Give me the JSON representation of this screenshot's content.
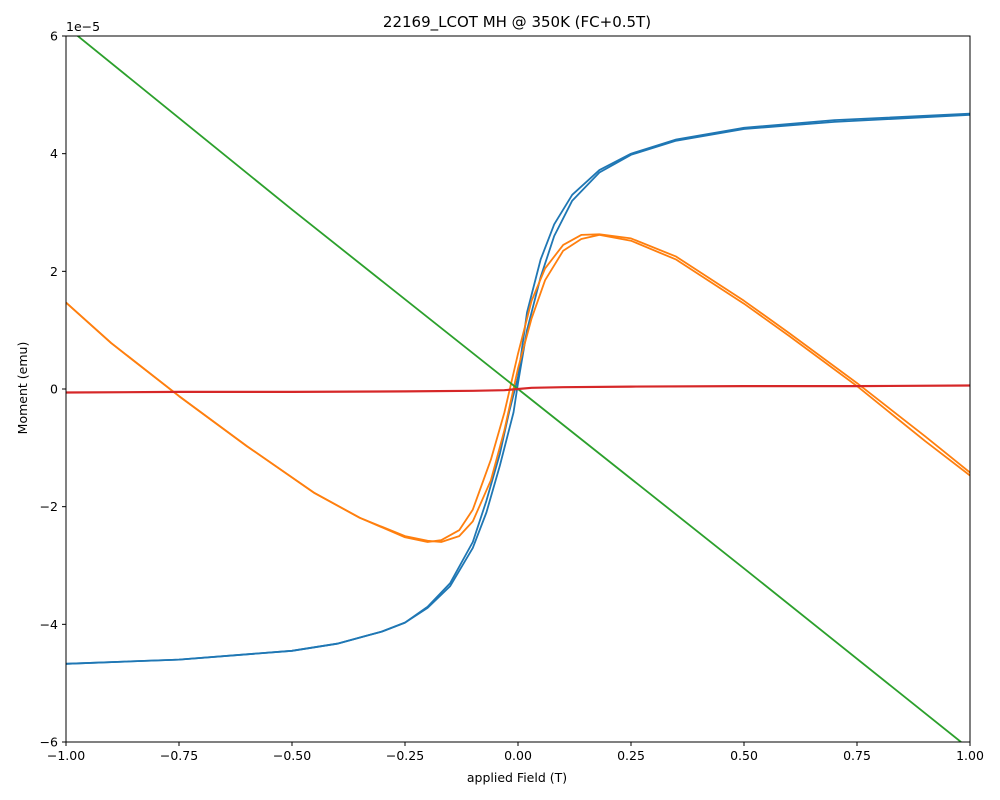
{
  "chart_data": {
    "type": "line",
    "title": "22169_LCOT MH @ 350K (FC+0.5T)",
    "xlabel": "applied Field (T)",
    "ylabel": "Moment (emu)",
    "y_offset_label": "1e−5",
    "xlim": [
      -1.0,
      1.0
    ],
    "ylim": [
      -6,
      6
    ],
    "x_ticks": [
      "−1.00",
      "−0.75",
      "−0.50",
      "−0.25",
      "0.00",
      "0.25",
      "0.50",
      "0.75",
      "1.00"
    ],
    "x_tick_values": [
      -1.0,
      -0.75,
      -0.5,
      -0.25,
      0.0,
      0.25,
      0.5,
      0.75,
      1.0
    ],
    "y_ticks": [
      "−6",
      "−4",
      "−2",
      "0",
      "2",
      "4",
      "6"
    ],
    "y_tick_values": [
      -6,
      -4,
      -2,
      0,
      2,
      4,
      6
    ],
    "grid": false,
    "legend": "none",
    "y_unit_scale": "1e-5",
    "series": [
      {
        "color": "#1f77b4",
        "branches": [
          {
            "x": [
              -1.0,
              -0.75,
              -0.5,
              -0.4,
              -0.3,
              -0.25,
              -0.2,
              -0.15,
              -0.1,
              -0.07,
              -0.04,
              -0.01,
              0.0,
              0.02,
              0.05,
              0.08,
              0.12,
              0.18,
              0.25,
              0.35,
              0.5,
              0.7,
              1.0
            ],
            "y": [
              -4.67,
              -4.6,
              -4.45,
              -4.33,
              -4.12,
              -3.97,
              -3.72,
              -3.35,
              -2.7,
              -2.1,
              -1.3,
              -0.4,
              0.1,
              1.0,
              1.9,
              2.6,
              3.2,
              3.68,
              3.98,
              4.22,
              4.42,
              4.54,
              4.66
            ]
          },
          {
            "x": [
              -1.0,
              -0.75,
              -0.5,
              -0.4,
              -0.3,
              -0.25,
              -0.2,
              -0.15,
              -0.1,
              -0.07,
              -0.04,
              -0.02,
              0.0,
              0.02,
              0.05,
              0.08,
              0.12,
              0.18,
              0.25,
              0.35,
              0.5,
              0.7,
              1.0
            ],
            "y": [
              -4.67,
              -4.6,
              -4.45,
              -4.33,
              -4.12,
              -3.97,
              -3.7,
              -3.3,
              -2.6,
              -1.9,
              -1.1,
              -0.4,
              0.2,
              1.3,
              2.2,
              2.8,
              3.3,
              3.72,
              4.0,
              4.24,
              4.44,
              4.57,
              4.68
            ]
          }
        ]
      },
      {
        "color": "#ff7f0e",
        "branches": [
          {
            "x": [
              -1.0,
              -0.9,
              -0.75,
              -0.6,
              -0.45,
              -0.35,
              -0.25,
              -0.2,
              -0.17,
              -0.13,
              -0.1,
              -0.06,
              -0.03,
              0.0,
              0.03,
              0.06,
              0.1,
              0.14,
              0.18,
              0.25,
              0.35,
              0.5,
              0.6,
              0.75,
              0.9,
              1.0
            ],
            "y": [
              1.47,
              0.78,
              -0.12,
              -0.97,
              -1.77,
              -2.19,
              -2.5,
              -2.58,
              -2.6,
              -2.5,
              -2.25,
              -1.55,
              -0.7,
              0.35,
              1.2,
              1.85,
              2.35,
              2.55,
              2.62,
              2.52,
              2.2,
              1.45,
              0.9,
              0.05,
              -0.88,
              -1.47
            ]
          },
          {
            "x": [
              -1.0,
              -0.9,
              -0.75,
              -0.6,
              -0.45,
              -0.35,
              -0.25,
              -0.2,
              -0.17,
              -0.13,
              -0.1,
              -0.06,
              -0.03,
              0.0,
              0.03,
              0.06,
              0.1,
              0.14,
              0.18,
              0.25,
              0.35,
              0.5,
              0.6,
              0.75,
              0.9,
              1.0
            ],
            "y": [
              1.47,
              0.78,
              -0.12,
              -0.97,
              -1.77,
              -2.19,
              -2.52,
              -2.6,
              -2.57,
              -2.4,
              -2.05,
              -1.2,
              -0.4,
              0.6,
              1.5,
              2.05,
              2.45,
              2.62,
              2.63,
              2.56,
              2.25,
              1.5,
              0.95,
              0.1,
              -0.8,
              -1.42
            ]
          }
        ]
      },
      {
        "color": "#2ca02c",
        "branches": [
          {
            "x": [
              -0.99,
              -0.5,
              0.0,
              0.5,
              0.98
            ],
            "y": [
              6.1,
              3.05,
              0.0,
              -3.05,
              -6.0
            ]
          }
        ]
      },
      {
        "color": "#d62728",
        "branches": [
          {
            "x": [
              -1.0,
              -0.75,
              -0.5,
              -0.25,
              -0.1,
              -0.03,
              0.0,
              0.03,
              0.1,
              0.25,
              0.5,
              0.75,
              1.0
            ],
            "y": [
              -0.06,
              -0.05,
              -0.05,
              -0.04,
              -0.03,
              -0.02,
              0.0,
              0.02,
              0.03,
              0.04,
              0.05,
              0.05,
              0.06
            ]
          }
        ]
      }
    ]
  }
}
